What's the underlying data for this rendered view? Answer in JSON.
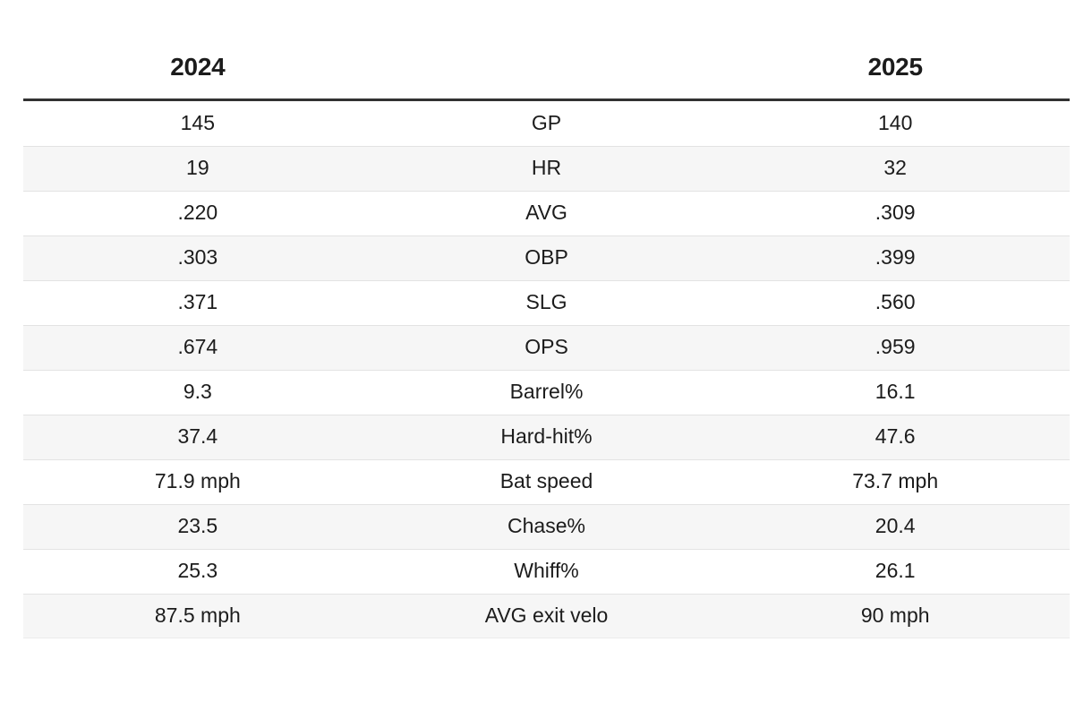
{
  "colors": {
    "background": "#ffffff",
    "text": "#1c1c1c",
    "header_rule": "#323232",
    "row_alt": "#f6f6f6",
    "row_divider": "#e3e3e3"
  },
  "chart_data": {
    "type": "table",
    "title": "",
    "column_headers": {
      "left": "2024",
      "middle": "",
      "right": "2025"
    },
    "layout": {
      "columns": 3,
      "alternating_rows": true,
      "header_rule_thickness_px": 3
    },
    "stats": [
      {
        "label": "GP",
        "v2024": "145",
        "v2025": "140"
      },
      {
        "label": "HR",
        "v2024": "19",
        "v2025": "32"
      },
      {
        "label": "AVG",
        "v2024": ".220",
        "v2025": ".309"
      },
      {
        "label": "OBP",
        "v2024": ".303",
        "v2025": ".399"
      },
      {
        "label": "SLG",
        "v2024": ".371",
        "v2025": ".560"
      },
      {
        "label": "OPS",
        "v2024": ".674",
        "v2025": ".959"
      },
      {
        "label": "Barrel%",
        "v2024": "9.3",
        "v2025": "16.1"
      },
      {
        "label": "Hard-hit%",
        "v2024": "37.4",
        "v2025": "47.6"
      },
      {
        "label": "Bat speed",
        "v2024": "71.9 mph",
        "v2025": "73.7 mph"
      },
      {
        "label": "Chase%",
        "v2024": "23.5",
        "v2025": "20.4"
      },
      {
        "label": "Whiff%",
        "v2024": "25.3",
        "v2025": "26.1"
      },
      {
        "label": "AVG exit velo",
        "v2024": "87.5 mph",
        "v2025": "90 mph"
      }
    ]
  }
}
